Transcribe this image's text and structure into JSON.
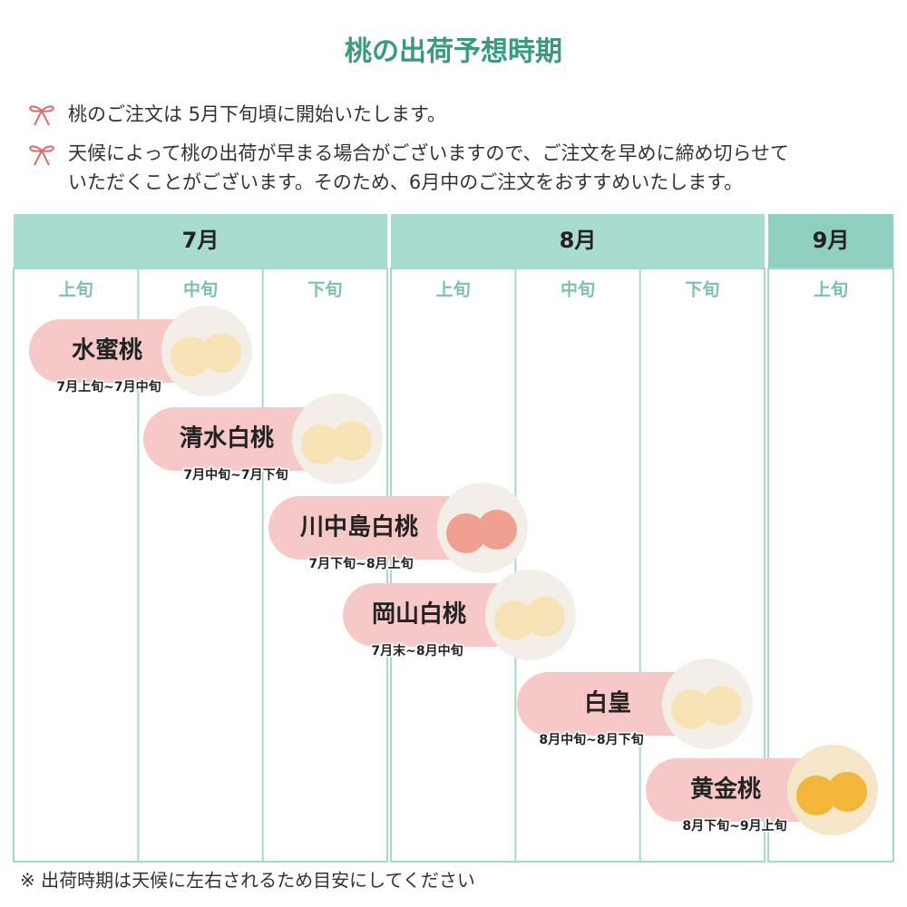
{
  "title": "桃の出荷予想時期",
  "notes": [
    "桃のご注文は 5月下旬頃に開始いたします。",
    "天候によって桃の出荷が早まる場合がございますので、ご注文を早めに締め切らせて",
    "いただくことがございます。そのため、6月中のご注文をおすすめいたします。"
  ],
  "months": [
    {
      "label": "7月",
      "periods": [
        "上旬",
        "中旬",
        "下旬"
      ]
    },
    {
      "label": "8月",
      "periods": [
        "上旬",
        "中旬",
        "下旬"
      ]
    },
    {
      "label": "9月",
      "periods": [
        "上旬"
      ]
    }
  ],
  "varieties": [
    {
      "name": "水蜜桃",
      "period": "7月上旬~7月中旬"
    },
    {
      "name": "清水白桃",
      "period": "7月中旬~7月下旬"
    },
    {
      "name": "川中島白桃",
      "period": "7月下旬~8月上旬"
    },
    {
      "name": "岡山白桃",
      "period": "7月末~8月中旬"
    },
    {
      "name": "白皇",
      "period": "8月中旬~8月下旬"
    },
    {
      "name": "黄金桃",
      "period": "8月下旬~9月上旬"
    }
  ],
  "footnote": "※ 出荷時期は天候に左右されるため目安にしてください"
}
